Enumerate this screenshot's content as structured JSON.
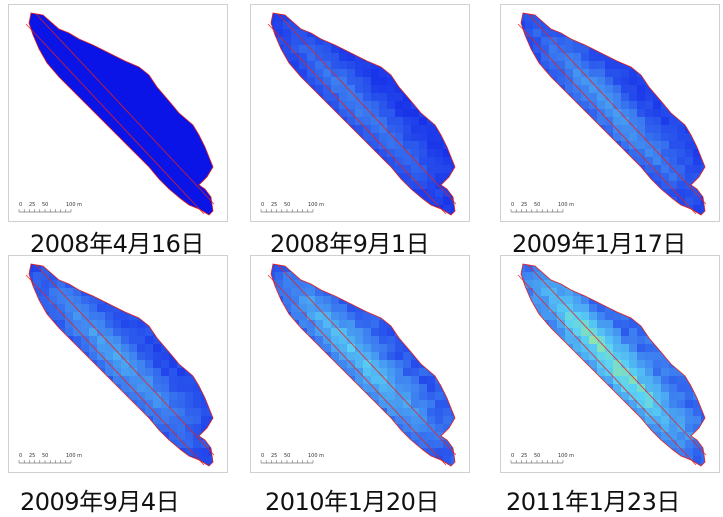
{
  "panels": [
    {
      "date": "2008年4月16日",
      "level": 0.0
    },
    {
      "date": "2008年9月1日",
      "level": 0.35
    },
    {
      "date": "2009年1月17日",
      "level": 0.45
    },
    {
      "date": "2009年9月4日",
      "level": 0.5
    },
    {
      "date": "2010年1月20日",
      "level": 0.65
    },
    {
      "date": "2011年1月23日",
      "level": 0.85
    }
  ],
  "scale_bar": {
    "labels": [
      "0",
      "25",
      "50",
      "100 m"
    ]
  },
  "colors": {
    "base": "#0a14e6",
    "outline": "#e8201c",
    "mid": "#3c7cf0",
    "light": "#5ad2f5",
    "high": "#b4f078"
  }
}
